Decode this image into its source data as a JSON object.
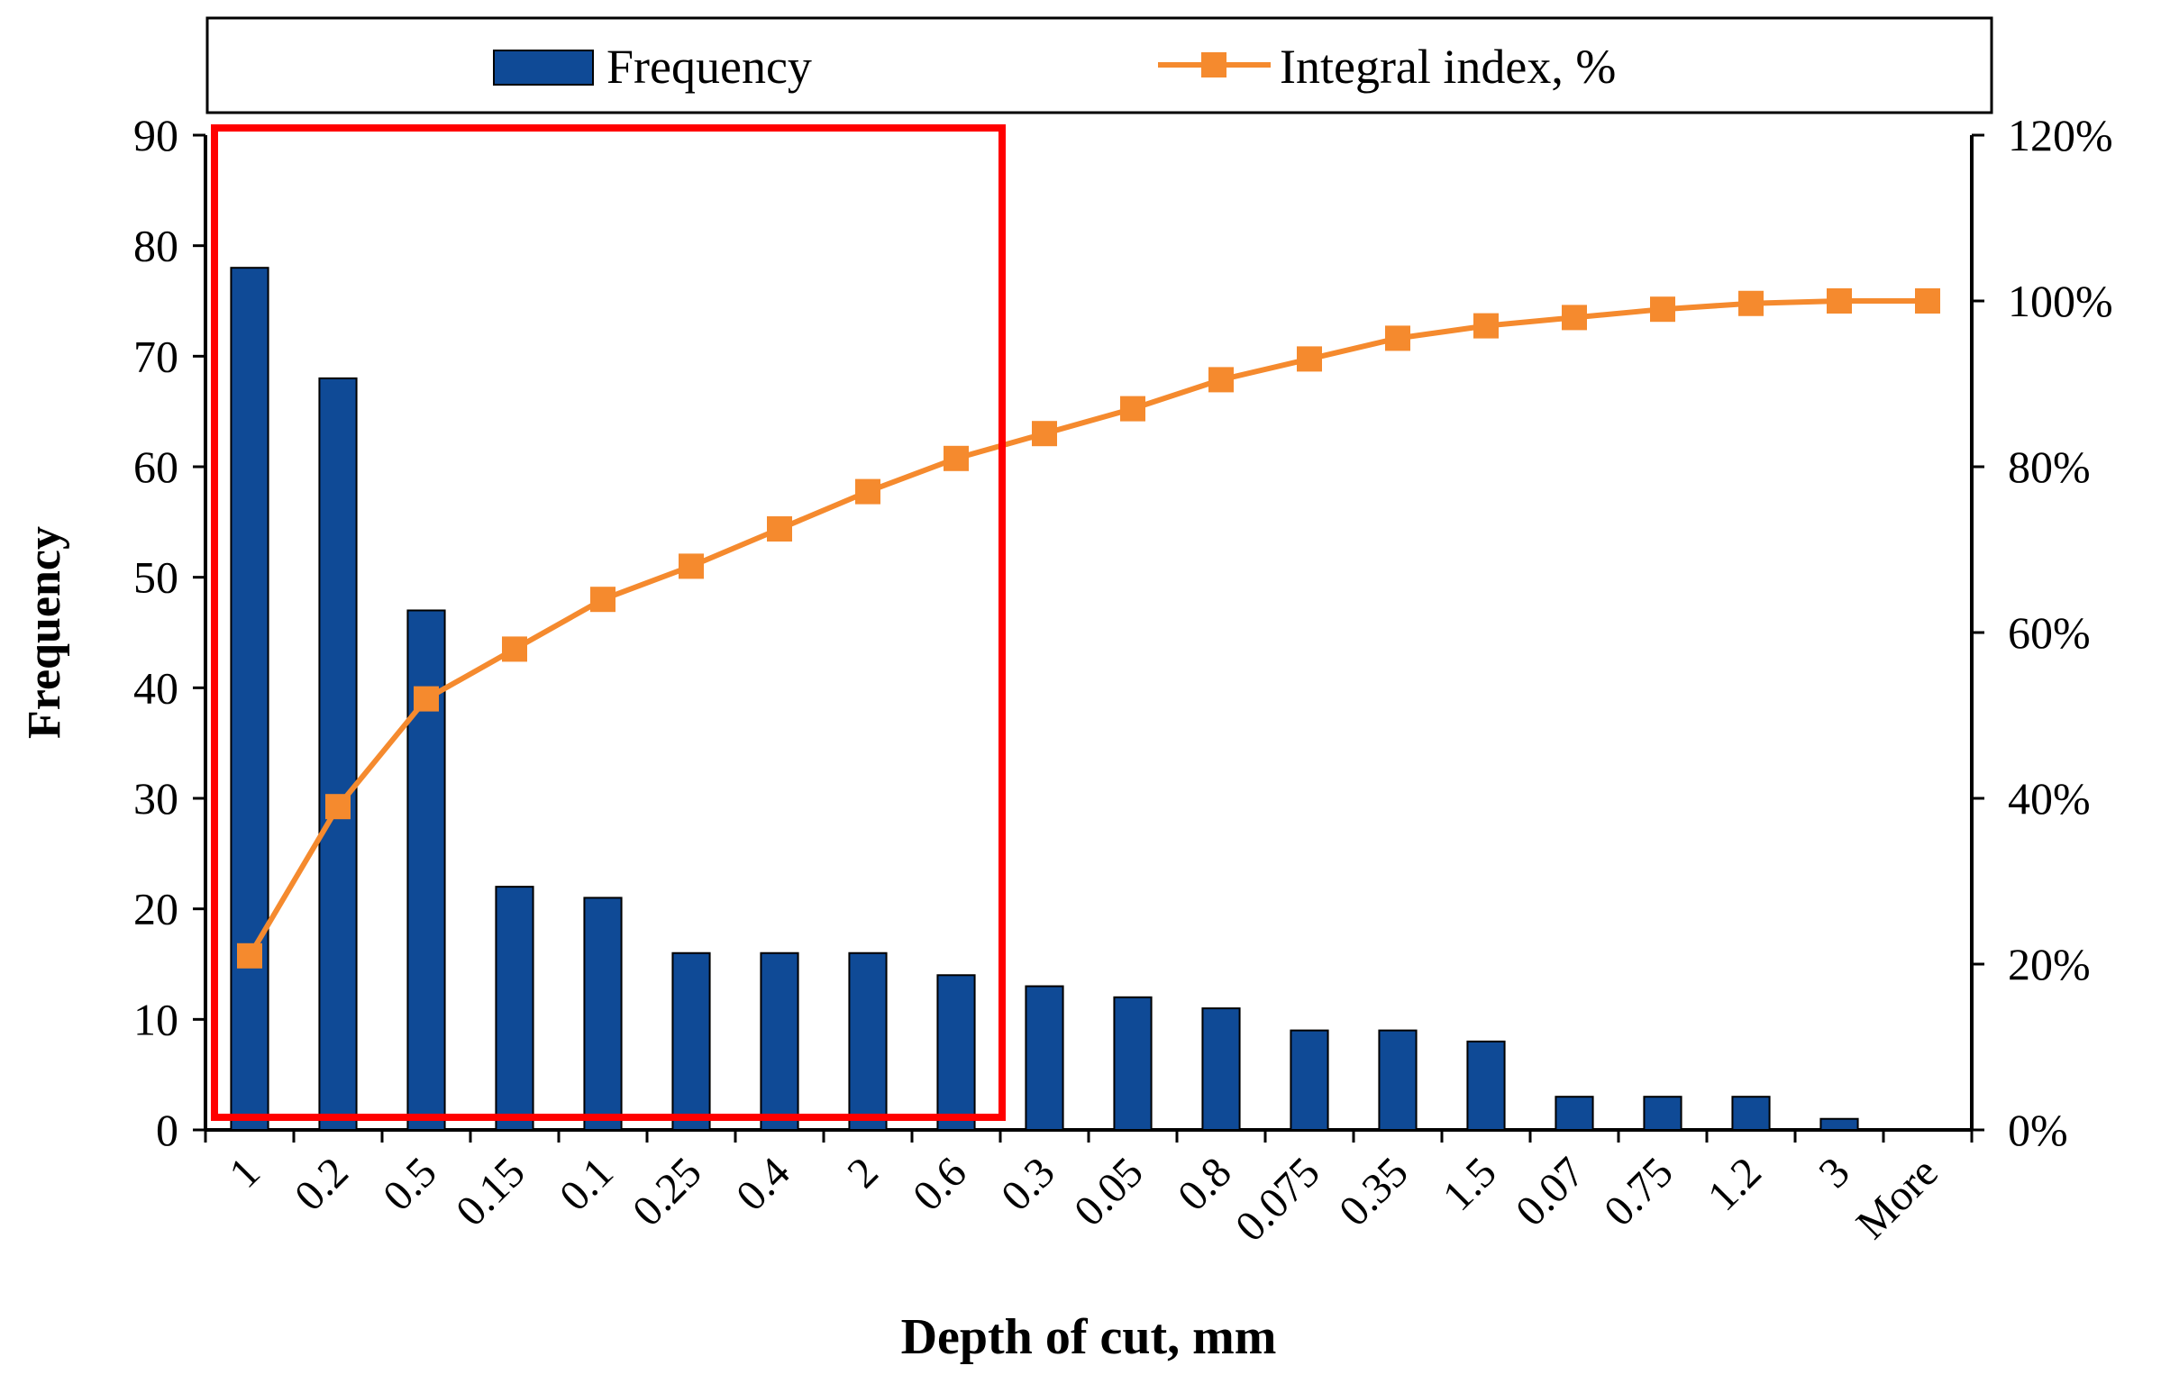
{
  "chart_data": {
    "type": "bar+line",
    "categories": [
      "1",
      "0.2",
      "0.5",
      "0.15",
      "0.1",
      "0.25",
      "0.4",
      "2",
      "0.6",
      "0.3",
      "0.05",
      "0.8",
      "0.075",
      "0.35",
      "1.5",
      "0.07",
      "0.75",
      "1.2",
      "3",
      "More"
    ],
    "series": [
      {
        "name": "Frequency",
        "kind": "bar",
        "axis": "left",
        "color": "#0f4a96",
        "values": [
          78,
          68,
          47,
          22,
          21,
          16,
          16,
          16,
          14,
          13,
          12,
          11,
          9,
          9,
          8,
          3,
          3,
          3,
          1,
          0
        ]
      },
      {
        "name": "Integral index, %",
        "kind": "line",
        "axis": "right",
        "color": "#f58a2e",
        "marker": "square",
        "values": [
          21,
          39,
          52,
          58,
          64,
          68,
          72.5,
          77,
          81,
          84,
          87,
          90.5,
          93,
          95.5,
          97,
          98,
          99,
          99.7,
          100,
          100
        ]
      }
    ],
    "xlabel": "Depth of cut, mm",
    "ylabel": "Frequency",
    "ylim": [
      0,
      90
    ],
    "yticks": [
      0,
      10,
      20,
      30,
      40,
      50,
      60,
      70,
      80,
      90
    ],
    "y2lim": [
      0,
      120
    ],
    "y2ticks": [
      "0%",
      "20%",
      "40%",
      "60%",
      "80%",
      "100%",
      "120%"
    ],
    "y2tick_values": [
      0,
      20,
      40,
      60,
      80,
      100,
      120
    ],
    "legend": {
      "position": "top",
      "entries": [
        "Frequency",
        "Integral index, %"
      ]
    },
    "highlight": {
      "from_category": "1",
      "to_category": "0.6",
      "color": "#ff0000"
    },
    "grid": false
  }
}
